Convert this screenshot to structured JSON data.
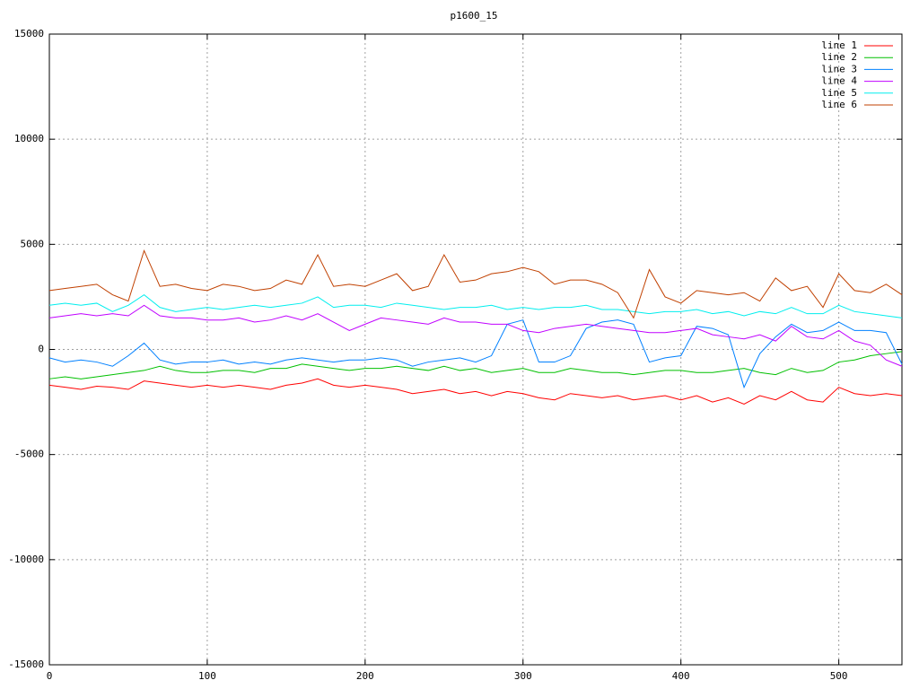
{
  "chart_data": {
    "type": "line",
    "title": "p1600_15",
    "x": [
      0,
      10,
      20,
      30,
      40,
      50,
      60,
      70,
      80,
      90,
      100,
      110,
      120,
      130,
      140,
      150,
      160,
      170,
      180,
      190,
      200,
      210,
      220,
      230,
      240,
      250,
      260,
      270,
      280,
      290,
      300,
      310,
      320,
      330,
      340,
      350,
      360,
      370,
      380,
      390,
      400,
      410,
      420,
      430,
      440,
      450,
      460,
      470,
      480,
      490,
      500,
      510,
      520,
      530,
      540
    ],
    "xlim": [
      0,
      540
    ],
    "xticks": [
      0,
      100,
      200,
      300,
      400,
      500
    ],
    "ylim": [
      -15000,
      15000
    ],
    "yticks": [
      -15000,
      -10000,
      -5000,
      0,
      5000,
      10000,
      15000
    ],
    "grid": true,
    "legend": "top-right",
    "series": [
      {
        "name": "line 1",
        "color": "#ff0000",
        "values": [
          -1700,
          -1800,
          -1900,
          -1750,
          -1800,
          -1900,
          -1500,
          -1600,
          -1700,
          -1800,
          -1700,
          -1800,
          -1700,
          -1800,
          -1900,
          -1700,
          -1600,
          -1400,
          -1700,
          -1800,
          -1700,
          -1800,
          -1900,
          -2100,
          -2000,
          -1900,
          -2100,
          -2000,
          -2200,
          -2000,
          -2100,
          -2300,
          -2400,
          -2100,
          -2200,
          -2300,
          -2200,
          -2400,
          -2300,
          -2200,
          -2400,
          -2200,
          -2500,
          -2300,
          -2600,
          -2200,
          -2400,
          -2000,
          -2400,
          -2500,
          -1800,
          -2100,
          -2200,
          -2100,
          -2200
        ]
      },
      {
        "name": "line 2",
        "color": "#00c000",
        "values": [
          -1400,
          -1300,
          -1400,
          -1300,
          -1200,
          -1100,
          -1000,
          -800,
          -1000,
          -1100,
          -1100,
          -1000,
          -1000,
          -1100,
          -900,
          -900,
          -700,
          -800,
          -900,
          -1000,
          -900,
          -900,
          -800,
          -900,
          -1000,
          -800,
          -1000,
          -900,
          -1100,
          -1000,
          -900,
          -1100,
          -1100,
          -900,
          -1000,
          -1100,
          -1100,
          -1200,
          -1100,
          -1000,
          -1000,
          -1100,
          -1100,
          -1000,
          -900,
          -1100,
          -1200,
          -900,
          -1100,
          -1000,
          -600,
          -500,
          -300,
          -200,
          -100
        ]
      },
      {
        "name": "line 3",
        "color": "#0080ff",
        "values": [
          -400,
          -600,
          -500,
          -600,
          -800,
          -300,
          300,
          -500,
          -700,
          -600,
          -600,
          -500,
          -700,
          -600,
          -700,
          -500,
          -400,
          -500,
          -600,
          -500,
          -500,
          -400,
          -500,
          -800,
          -600,
          -500,
          -400,
          -600,
          -300,
          1200,
          1400,
          -600,
          -600,
          -300,
          1000,
          1300,
          1400,
          1200,
          -600,
          -400,
          -300,
          1100,
          1000,
          700,
          -1800,
          -200,
          600,
          1200,
          800,
          900,
          1300,
          900,
          900,
          800,
          -700
        ]
      },
      {
        "name": "line 4",
        "color": "#c000ff",
        "values": [
          1500,
          1600,
          1700,
          1600,
          1700,
          1600,
          2100,
          1600,
          1500,
          1500,
          1400,
          1400,
          1500,
          1300,
          1400,
          1600,
          1400,
          1700,
          1300,
          900,
          1200,
          1500,
          1400,
          1300,
          1200,
          1500,
          1300,
          1300,
          1200,
          1200,
          900,
          800,
          1000,
          1100,
          1200,
          1100,
          1000,
          900,
          800,
          800,
          900,
          1000,
          700,
          600,
          500,
          700,
          400,
          1100,
          600,
          500,
          900,
          400,
          200,
          -500,
          -800
        ]
      },
      {
        "name": "line 5",
        "color": "#00eeee",
        "values": [
          2100,
          2200,
          2100,
          2200,
          1800,
          2100,
          2600,
          2000,
          1800,
          1900,
          2000,
          1900,
          2000,
          2100,
          2000,
          2100,
          2200,
          2500,
          2000,
          2100,
          2100,
          2000,
          2200,
          2100,
          2000,
          1900,
          2000,
          2000,
          2100,
          1900,
          2000,
          1900,
          2000,
          2000,
          2100,
          1900,
          1900,
          1800,
          1700,
          1800,
          1800,
          1900,
          1700,
          1800,
          1600,
          1800,
          1700,
          2000,
          1700,
          1700,
          2100,
          1800,
          1700,
          1600,
          1500
        ]
      },
      {
        "name": "line 6",
        "color": "#c04000",
        "values": [
          2800,
          2900,
          3000,
          3100,
          2600,
          2300,
          4700,
          3000,
          3100,
          2900,
          2800,
          3100,
          3000,
          2800,
          2900,
          3300,
          3100,
          4500,
          3000,
          3100,
          3000,
          3300,
          3600,
          2800,
          3000,
          4500,
          3200,
          3300,
          3600,
          3700,
          3900,
          3700,
          3100,
          3300,
          3300,
          3100,
          2700,
          1500,
          3800,
          2500,
          2200,
          2800,
          2700,
          2600,
          2700,
          2300,
          3400,
          2800,
          3000,
          2000,
          3600,
          2800,
          2700,
          3100,
          2600
        ]
      }
    ]
  }
}
